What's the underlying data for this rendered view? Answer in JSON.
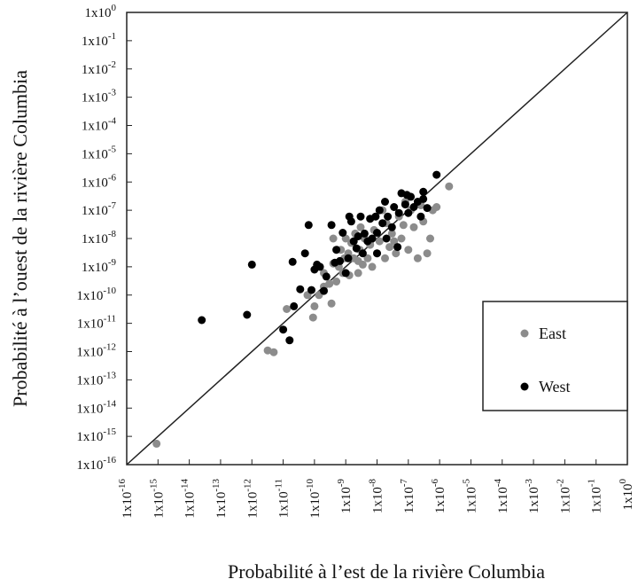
{
  "chart_data": {
    "type": "scatter",
    "title": "",
    "xlabel": "Probabilité à l’est de la rivière Columbia",
    "ylabel": "Probabilité à l’ouest de la rivière Columbia",
    "x_scale": "log",
    "y_scale": "log",
    "xlim": [
      "1e-16",
      "1e0"
    ],
    "ylim": [
      "1e-16",
      "1e0"
    ],
    "x_exponents": [
      -16,
      -15,
      -14,
      -13,
      -12,
      -11,
      -10,
      -9,
      -8,
      -7,
      -6,
      -5,
      -4,
      -3,
      -2,
      -1,
      0
    ],
    "y_exponents": [
      -16,
      -15,
      -14,
      -13,
      -12,
      -11,
      -10,
      -9,
      -8,
      -7,
      -6,
      -5,
      -4,
      -3,
      -2,
      -1,
      0
    ],
    "tick_base": "1x10",
    "grid": false,
    "reference_line": "y = x",
    "legend_position": "right",
    "series": [
      {
        "name": "East",
        "color": "#8c8c8c",
        "points": [
          [
            "9.0e-16",
            "5.5e-16"
          ],
          [
            "3.2e-12",
            "1.1e-12"
          ],
          [
            "5.0e-12",
            "9.5e-13"
          ],
          [
            "1.3e-11",
            "3.2e-11"
          ],
          [
            "6.0e-11",
            "1.0e-10"
          ],
          [
            "9.0e-11",
            "1.6e-11"
          ],
          [
            "1.0e-10",
            "4.0e-11"
          ],
          [
            "1.4e-10",
            "1.0e-10"
          ],
          [
            "2.0e-10",
            "6.0e-10"
          ],
          [
            "2.0e-10",
            "2.0e-10"
          ],
          [
            "3.0e-10",
            "2.5e-10"
          ],
          [
            "3.5e-10",
            "5.0e-11"
          ],
          [
            "4.0e-10",
            "1.3e-09"
          ],
          [
            "5.0e-10",
            "3.0e-10"
          ],
          [
            "6.0e-10",
            "1.0e-09"
          ],
          [
            "7.0e-10",
            "4.0e-09"
          ],
          [
            "8.0e-10",
            "6.0e-10"
          ],
          [
            "9.0e-10",
            "2.0e-09"
          ],
          [
            "1.0e-09",
            "1.0e-08"
          ],
          [
            "1.2e-09",
            "3.0e-09"
          ],
          [
            "1.3e-09",
            "5.0e-10"
          ],
          [
            "1.5e-09",
            "7.0e-09"
          ],
          [
            "1.8e-09",
            "2.0e-09"
          ],
          [
            "2.0e-09",
            "1.5e-08"
          ],
          [
            "2.5e-09",
            "6.0e-10"
          ],
          [
            "2.8e-09",
            "4.0e-09"
          ],
          [
            "3.0e-09",
            "2.5e-08"
          ],
          [
            "3.5e-09",
            "1.2e-09"
          ],
          [
            "4.0e-09",
            "1.0e-08"
          ],
          [
            "5.0e-09",
            "2.0e-09"
          ],
          [
            "6.0e-09",
            "5.0e-08"
          ],
          [
            "7.0e-09",
            "1.0e-09"
          ],
          [
            "8.0e-09",
            "2.0e-08"
          ],
          [
            "1.0e-08",
            "3.0e-09"
          ],
          [
            "1.2e-08",
            "8.0e-09"
          ],
          [
            "1.5e-08",
            "1.0e-07"
          ],
          [
            "1.8e-08",
            "2.0e-09"
          ],
          [
            "2.0e-08",
            "3.5e-08"
          ],
          [
            "2.5e-08",
            "5.0e-09"
          ],
          [
            "3.0e-08",
            "1.5e-08"
          ],
          [
            "4.0e-08",
            "3.0e-09"
          ],
          [
            "5.0e-08",
            "6.0e-08"
          ],
          [
            "6.0e-08",
            "1.0e-08"
          ],
          [
            "7.0e-08",
            "3.0e-08"
          ],
          [
            "8.0e-08",
            "2.0e-07"
          ],
          [
            "1.0e-07",
            "4.0e-09"
          ],
          [
            "1.2e-07",
            "1.0e-07"
          ],
          [
            "1.5e-07",
            "2.5e-08"
          ],
          [
            "2.0e-07",
            "2.0e-09"
          ],
          [
            "2.5e-07",
            "1.5e-07"
          ],
          [
            "3.0e-07",
            "4.0e-08"
          ],
          [
            "4.0e-07",
            "3.0e-09"
          ],
          [
            "5.0e-07",
            "1.0e-08"
          ],
          [
            "6.0e-07",
            "1.0e-07"
          ],
          [
            "8.0e-07",
            "1.3e-07"
          ],
          [
            "2.0e-06",
            "7.0e-07"
          ],
          [
            "4.0e-10",
            "1.0e-08"
          ],
          [
            "2.5e-09",
            "1.6e-09"
          ],
          [
            "6.0e-09",
            "6.0e-09"
          ],
          [
            "3.5e-08",
            "8.0e-09"
          ]
        ]
      },
      {
        "name": "West",
        "color": "#000000",
        "points": [
          [
            "2.5e-14",
            "1.3e-11"
          ],
          [
            "7.0e-13",
            "2.0e-11"
          ],
          [
            "1.0e-12",
            "1.2e-09"
          ],
          [
            "1.6e-11",
            "2.5e-12"
          ],
          [
            "1.0e-11",
            "6.0e-12"
          ],
          [
            "2.0e-11",
            "1.5e-09"
          ],
          [
            "2.2e-11",
            "4.0e-11"
          ],
          [
            "3.5e-11",
            "1.6e-10"
          ],
          [
            "5.0e-11",
            "3.0e-09"
          ],
          [
            "6.5e-11",
            "3.0e-08"
          ],
          [
            "8.0e-11",
            "1.5e-10"
          ],
          [
            "1.0e-10",
            "8.0e-10"
          ],
          [
            "1.2e-10",
            "1.2e-09"
          ],
          [
            "1.5e-10",
            "1.0e-09"
          ],
          [
            "2.0e-10",
            "1.4e-10"
          ],
          [
            "2.4e-10",
            "4.5e-10"
          ],
          [
            "3.5e-10",
            "3.0e-08"
          ],
          [
            "4.5e-10",
            "1.4e-09"
          ],
          [
            "5.0e-10",
            "4.0e-09"
          ],
          [
            "6.5e-10",
            "1.6e-09"
          ],
          [
            "8.0e-10",
            "1.6e-08"
          ],
          [
            "1.0e-09",
            "6.0e-10"
          ],
          [
            "1.2e-09",
            "2.0e-09"
          ],
          [
            "1.5e-09",
            "4.0e-08"
          ],
          [
            "1.8e-09",
            "8.0e-09"
          ],
          [
            "2.2e-09",
            "4.5e-09"
          ],
          [
            "3.0e-09",
            "6.0e-08"
          ],
          [
            "3.5e-09",
            "3.0e-09"
          ],
          [
            "4.0e-09",
            "1.5e-08"
          ],
          [
            "5.0e-09",
            "8.0e-09"
          ],
          [
            "6.0e-09",
            "5.0e-08"
          ],
          [
            "7.0e-09",
            "1.0e-08"
          ],
          [
            "9.0e-09",
            "6.0e-08"
          ],
          [
            "1.0e-08",
            "1.6e-08"
          ],
          [
            "1.2e-08",
            "1.0e-07"
          ],
          [
            "1.5e-08",
            "3.5e-08"
          ],
          [
            "1.8e-08",
            "2.0e-07"
          ],
          [
            "2.2e-08",
            "6.0e-08"
          ],
          [
            "3.0e-08",
            "2.5e-08"
          ],
          [
            "3.5e-08",
            "1.3e-07"
          ],
          [
            "5.0e-08",
            "8.0e-08"
          ],
          [
            "6.0e-08",
            "4.0e-07"
          ],
          [
            "8.0e-08",
            "1.6e-07"
          ],
          [
            "1.0e-07",
            "8.0e-08"
          ],
          [
            "1.2e-07",
            "3.0e-07"
          ],
          [
            "1.5e-07",
            "1.3e-07"
          ],
          [
            "2.0e-07",
            "2.0e-07"
          ],
          [
            "2.5e-07",
            "6.0e-08"
          ],
          [
            "3.0e-07",
            "2.5e-07"
          ],
          [
            "4.0e-07",
            "1.2e-07"
          ],
          [
            "8.0e-07",
            "1.8e-06"
          ],
          [
            "3.0e-07",
            "4.5e-07"
          ],
          [
            "1.3e-09",
            "6.0e-08"
          ],
          [
            "2.5e-09",
            "1.2e-08"
          ],
          [
            "4.5e-08",
            "5.0e-09"
          ],
          [
            "1.0e-08",
            "3.0e-09"
          ],
          [
            "2.0e-08",
            "1.0e-08"
          ],
          [
            "9.0e-08",
            "3.5e-07"
          ]
        ]
      }
    ]
  }
}
